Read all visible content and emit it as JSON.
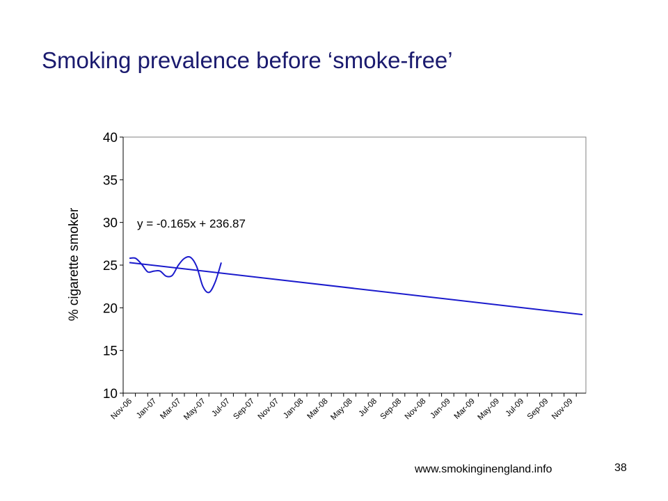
{
  "slide": {
    "title": "Smoking prevalence before ‘smoke-free’",
    "footer_url": "www.smokinginengland.info",
    "page_number": "38"
  },
  "chart_data": {
    "type": "line",
    "title": "",
    "xlabel": "",
    "ylabel": "% cigarette smoker",
    "ylim": [
      10,
      40
    ],
    "yticks": [
      10,
      15,
      20,
      25,
      30,
      35,
      40
    ],
    "grid": false,
    "x_categories": [
      "Nov-06",
      "Jan-07",
      "Mar-07",
      "May-07",
      "Jul-07",
      "Sep-07",
      "Nov-07",
      "Jan-08",
      "Mar-08",
      "May-08",
      "Jul-08",
      "Sep-08",
      "Nov-08",
      "Jan-09",
      "Mar-09",
      "May-09",
      "Jul-09",
      "Sep-09",
      "Nov-09"
    ],
    "annotation": "y = -0.165x + 236.87",
    "series": [
      {
        "kind": "observed",
        "color": "#1a1acc",
        "points": [
          [
            0,
            25.8
          ],
          [
            0.5,
            25.8
          ],
          [
            1,
            25.1
          ],
          [
            1.5,
            24.2
          ],
          [
            2,
            24.3
          ],
          [
            2.5,
            24.3
          ],
          [
            3,
            23.7
          ],
          [
            3.5,
            23.8
          ],
          [
            4,
            25.0
          ],
          [
            4.5,
            25.8
          ],
          [
            5,
            25.9
          ],
          [
            5.5,
            24.8
          ],
          [
            6,
            22.5
          ],
          [
            6.5,
            21.8
          ],
          [
            7,
            23.0
          ],
          [
            7.5,
            25.3
          ]
        ]
      },
      {
        "kind": "trend",
        "color": "#1a1acc",
        "points": [
          [
            0,
            25.3
          ],
          [
            37,
            19.2
          ]
        ]
      }
    ]
  }
}
